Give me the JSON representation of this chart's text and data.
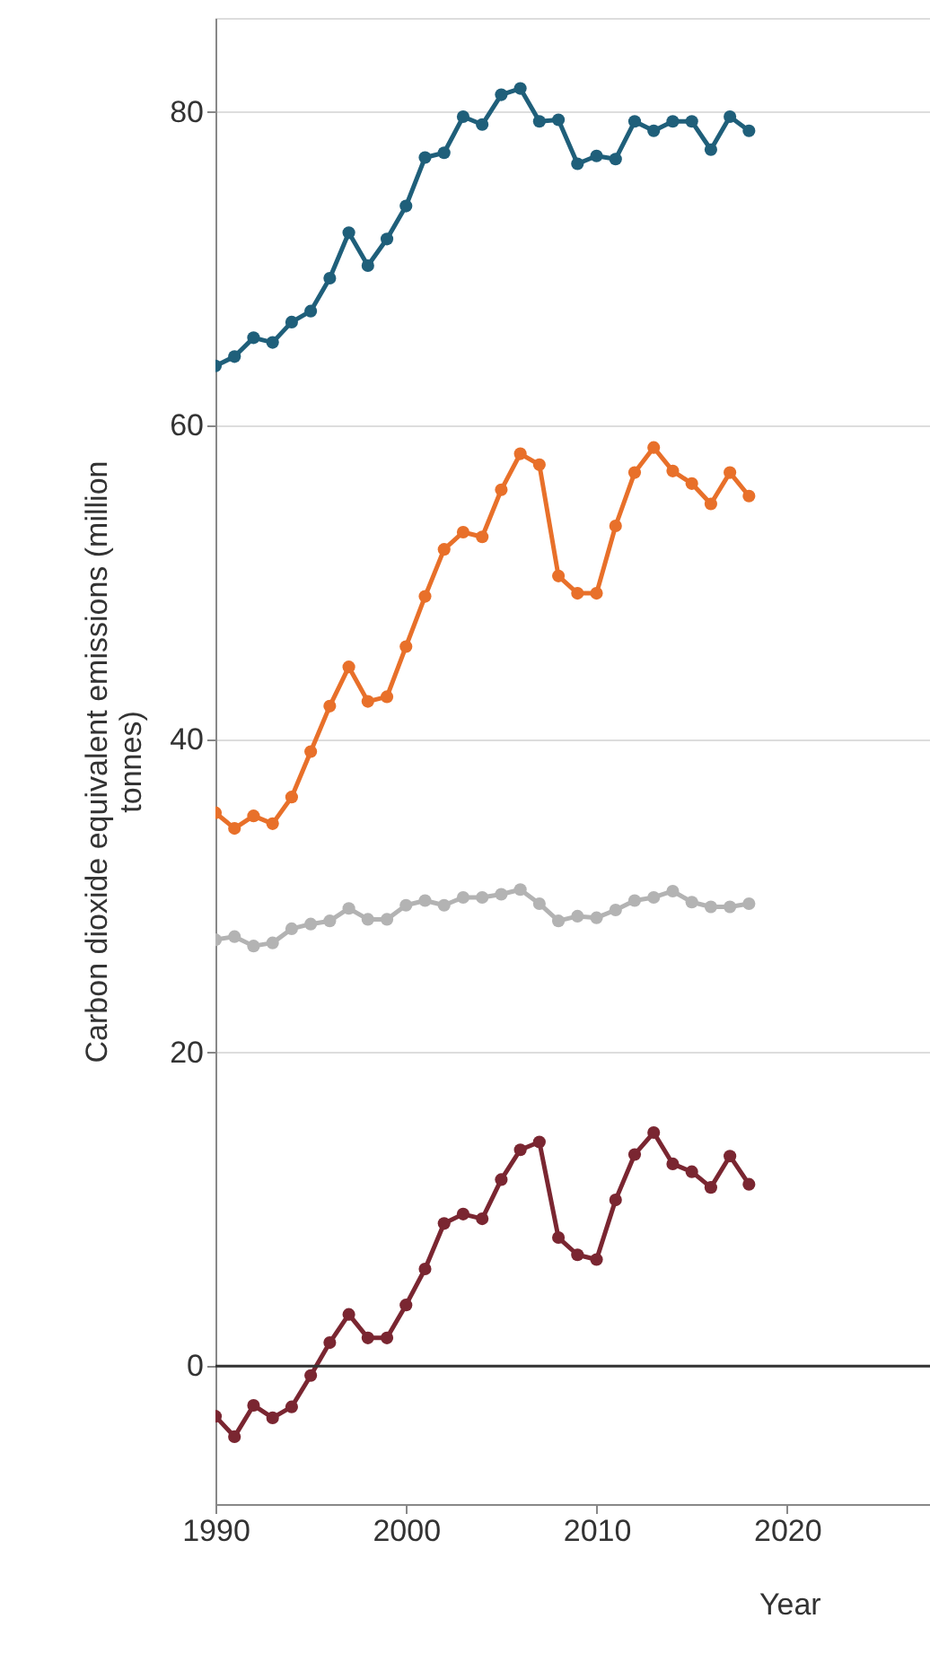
{
  "chart_data": {
    "type": "line",
    "xlabel": "Year",
    "ylabel": "Carbon dioxide equivalent emissions (million tonnes)",
    "x": [
      1990,
      1991,
      1992,
      1993,
      1994,
      1995,
      1996,
      1997,
      1998,
      1999,
      2000,
      2001,
      2002,
      2003,
      2004,
      2005,
      2006,
      2007,
      2008,
      2009,
      2010,
      2011,
      2012,
      2013,
      2014,
      2015,
      2016,
      2017,
      2018
    ],
    "series": [
      {
        "color": "#1f5f7a",
        "values": [
          63.8,
          64.4,
          65.6,
          65.3,
          66.6,
          67.3,
          69.4,
          72.3,
          70.2,
          71.9,
          74.0,
          77.1,
          77.4,
          79.7,
          79.2,
          81.1,
          81.5,
          79.4,
          79.5,
          76.7,
          77.2,
          77.0,
          79.4,
          78.8,
          79.4,
          79.4,
          77.6,
          79.7,
          78.8
        ]
      },
      {
        "color": "#e8702a",
        "values": [
          35.3,
          34.3,
          35.1,
          34.6,
          36.3,
          39.2,
          42.1,
          44.6,
          42.4,
          42.7,
          45.9,
          49.1,
          52.1,
          53.2,
          52.9,
          55.9,
          58.2,
          57.5,
          50.4,
          49.3,
          49.3,
          53.6,
          57.0,
          58.6,
          57.1,
          56.3,
          55.0,
          57.0,
          55.5
        ]
      },
      {
        "color": "#b3b3b3",
        "values": [
          27.2,
          27.4,
          26.8,
          27.0,
          27.9,
          28.2,
          28.4,
          29.2,
          28.5,
          28.5,
          29.4,
          29.7,
          29.4,
          29.9,
          29.9,
          30.1,
          30.4,
          29.5,
          28.4,
          28.7,
          28.6,
          29.1,
          29.7,
          29.9,
          30.3,
          29.6,
          29.3,
          29.3,
          29.5
        ]
      },
      {
        "color": "#7a2631",
        "values": [
          -3.2,
          -4.5,
          -2.5,
          -3.3,
          -2.6,
          -0.6,
          1.5,
          3.3,
          1.8,
          1.8,
          3.9,
          6.2,
          9.1,
          9.7,
          9.4,
          11.9,
          13.8,
          14.3,
          8.2,
          7.1,
          6.8,
          10.6,
          13.5,
          14.9,
          12.9,
          12.4,
          11.4,
          13.4,
          11.6
        ]
      }
    ],
    "xlim": [
      1990,
      2027.5
    ],
    "xticks": [
      1990,
      2000,
      2010,
      2020
    ],
    "ylim": [
      -8.8,
      86
    ],
    "yticks": [
      0,
      20,
      40,
      60,
      80
    ],
    "ref_lines": [
      {
        "axis": "y",
        "value": 0,
        "color": "#333333"
      }
    ],
    "grid": "y",
    "marker": "circle",
    "line_style": "solid"
  }
}
